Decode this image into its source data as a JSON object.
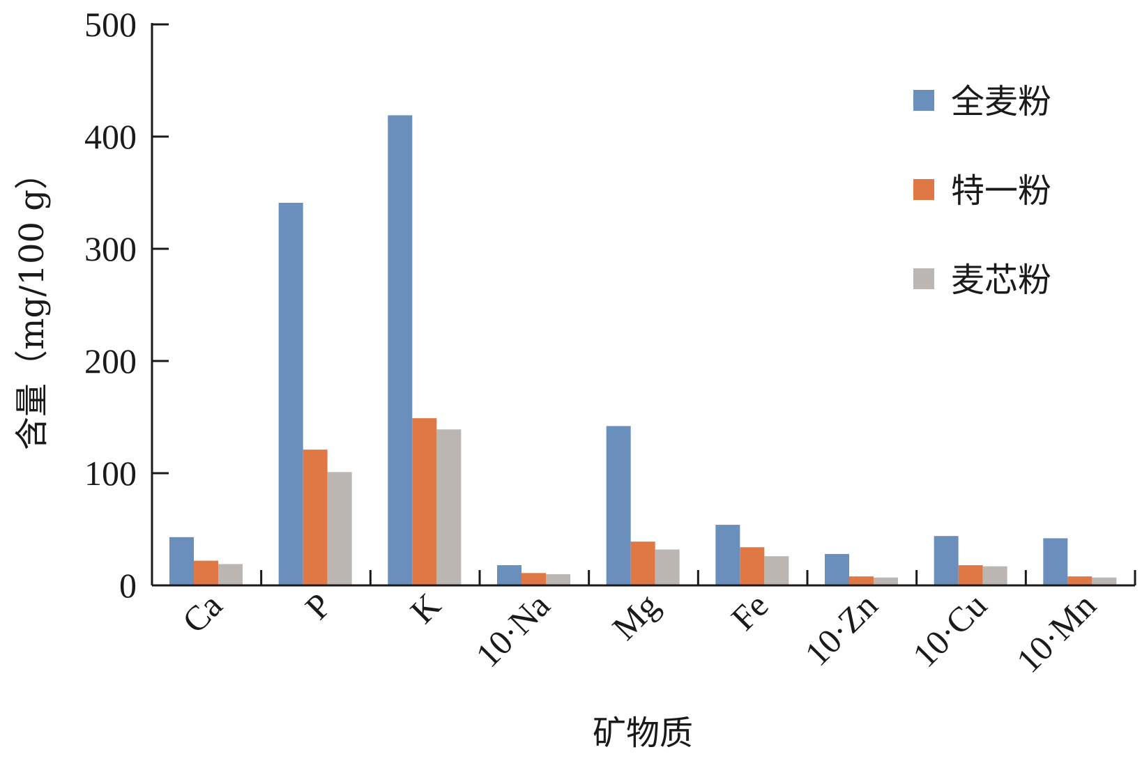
{
  "chart_data": {
    "type": "bar",
    "title": "",
    "xlabel": "矿物质",
    "ylabel": "含量（mg/100 g）",
    "ylim": [
      0,
      500
    ],
    "yticks": [
      0,
      100,
      200,
      300,
      400,
      500
    ],
    "grid": false,
    "legend_position": "top-right",
    "categories": [
      "Ca",
      "P",
      "K",
      "10·Na",
      "Mg",
      "Fe",
      "10·Zn",
      "10·Cu",
      "10·Mn"
    ],
    "series": [
      {
        "name": "全麦粉",
        "color": "#6b8fbd",
        "values": [
          43,
          341,
          419,
          18,
          142,
          54,
          28,
          44,
          42
        ]
      },
      {
        "name": "特一粉",
        "color": "#e07845",
        "values": [
          22,
          121,
          149,
          11,
          39,
          34,
          8,
          18,
          8
        ]
      },
      {
        "name": "麦芯粉",
        "color": "#bcb6b3",
        "values": [
          19,
          101,
          139,
          10,
          32,
          26,
          7,
          17,
          7
        ]
      }
    ]
  }
}
